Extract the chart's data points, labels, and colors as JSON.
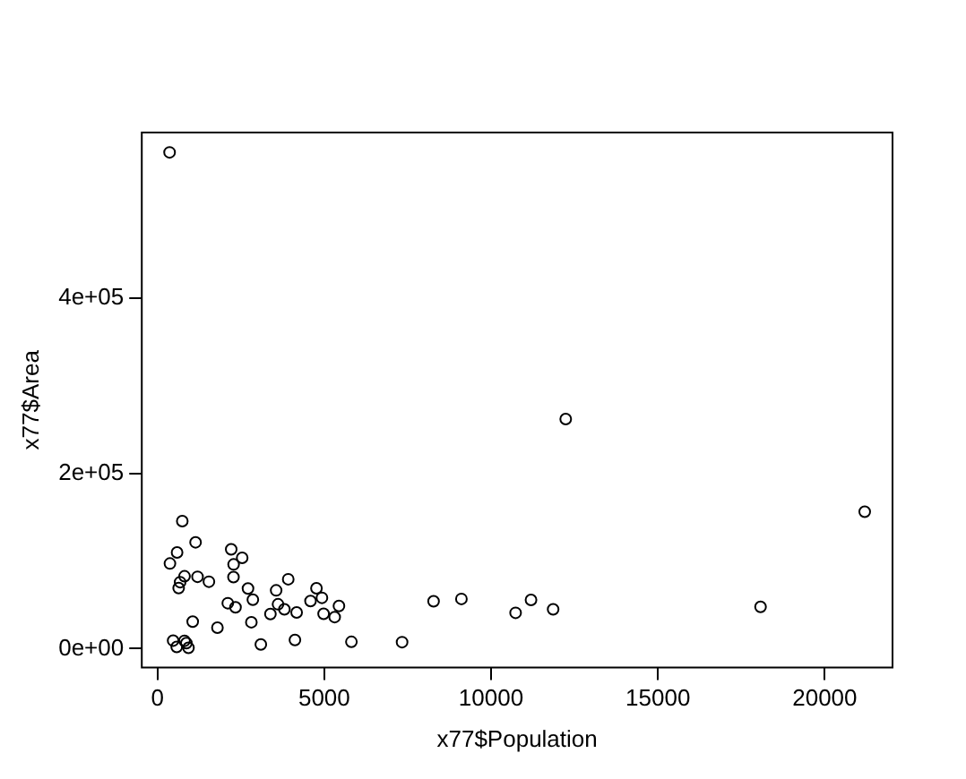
{
  "chart_data": {
    "type": "scatter",
    "xlabel": "x77$Population",
    "ylabel": "x77$Area",
    "x": [
      3615,
      365,
      2212,
      2110,
      21198,
      2541,
      3100,
      579,
      8277,
      4931,
      868,
      813,
      11197,
      5313,
      2861,
      2280,
      3387,
      3806,
      1058,
      4122,
      5814,
      9111,
      3921,
      2341,
      4767,
      746,
      1544,
      590,
      812,
      7333,
      1144,
      18076,
      5441,
      637,
      10735,
      2715,
      2284,
      11860,
      931,
      2816,
      681,
      4173,
      12237,
      1203,
      472,
      4981,
      3559,
      1799,
      4589,
      376
    ],
    "series": [
      {
        "color": "#000000",
        "values": [
          50708,
          566432,
          113417,
          51945,
          156361,
          103766,
          4862,
          1982,
          54090,
          58073,
          6425,
          82677,
          55748,
          36097,
          55941,
          81787,
          39650,
          44930,
          30920,
          9891,
          7826,
          56817,
          79289,
          47296,
          68995,
          145587,
          76483,
          109889,
          9027,
          7521,
          121412,
          47831,
          48798,
          69273,
          40975,
          68782,
          96184,
          44966,
          1049,
          30225,
          75955,
          41328,
          262134,
          82096,
          9267,
          39780,
          66570,
          24070,
          54464,
          97203
        ]
      }
    ],
    "xlim": [
      -468,
      22031
    ],
    "ylim": [
      -21566,
      589047
    ],
    "xticks": [
      0,
      5000,
      10000,
      15000,
      20000
    ],
    "yticks": [
      {
        "value": 0,
        "label": "0e+00"
      },
      {
        "value": 200000,
        "label": "2e+05"
      },
      {
        "value": 400000,
        "label": "4e+05"
      }
    ],
    "grid": false,
    "legend": false,
    "marker": "circle"
  }
}
